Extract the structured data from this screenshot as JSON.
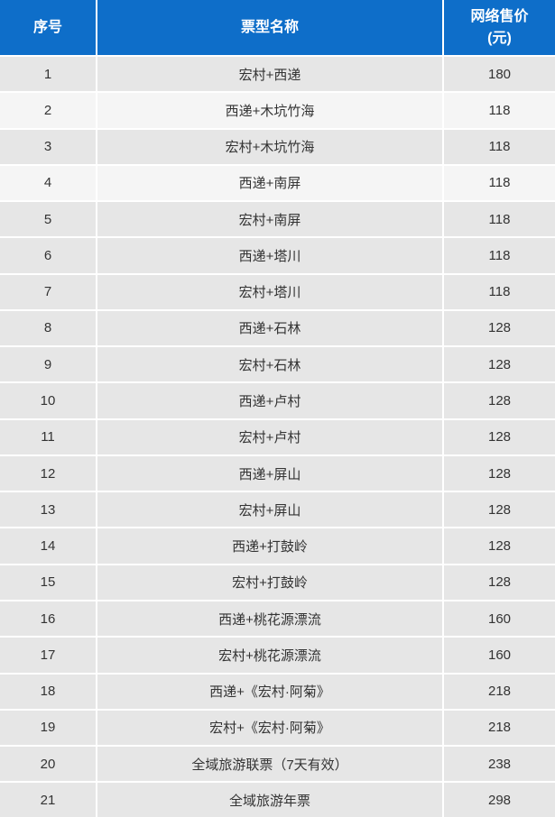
{
  "table": {
    "header": {
      "col_index": "序号",
      "col_name": "票型名称",
      "col_price_line1": "网络售价",
      "col_price_line2": "(元)"
    },
    "rows": [
      {
        "index": "1",
        "name": "宏村+西递",
        "price": "180"
      },
      {
        "index": "2",
        "name": "西递+木坑竹海",
        "price": "118"
      },
      {
        "index": "3",
        "name": "宏村+木坑竹海",
        "price": "118"
      },
      {
        "index": "4",
        "name": "西递+南屏",
        "price": "118"
      },
      {
        "index": "5",
        "name": "宏村+南屏",
        "price": "118"
      },
      {
        "index": "6",
        "name": "西递+塔川",
        "price": "118"
      },
      {
        "index": "7",
        "name": "宏村+塔川",
        "price": "118"
      },
      {
        "index": "8",
        "name": "西递+石林",
        "price": "128"
      },
      {
        "index": "9",
        "name": "宏村+石林",
        "price": "128"
      },
      {
        "index": "10",
        "name": "西递+卢村",
        "price": "128"
      },
      {
        "index": "11",
        "name": "宏村+卢村",
        "price": "128"
      },
      {
        "index": "12",
        "name": "西递+屏山",
        "price": "128"
      },
      {
        "index": "13",
        "name": "宏村+屏山",
        "price": "128"
      },
      {
        "index": "14",
        "name": "西递+打鼓岭",
        "price": "128"
      },
      {
        "index": "15",
        "name": "宏村+打鼓岭",
        "price": "128"
      },
      {
        "index": "16",
        "name": "西递+桃花源漂流",
        "price": "160"
      },
      {
        "index": "17",
        "name": "宏村+桃花源漂流",
        "price": "160"
      },
      {
        "index": "18",
        "name": "西递+《宏村·阿菊》",
        "price": "218"
      },
      {
        "index": "19",
        "name": "宏村+《宏村·阿菊》",
        "price": "218"
      },
      {
        "index": "20",
        "name": "全域旅游联票（7天有效）",
        "price": "238"
      },
      {
        "index": "21",
        "name": "全域旅游年票",
        "price": "298"
      }
    ],
    "light_rows": [
      2,
      4
    ],
    "colors": {
      "header_bg": "#0e6ec9",
      "header_text": "#ffffff",
      "row_bg_default": "#e6e6e6",
      "row_bg_light": "#f5f5f5",
      "separator": "#ffffff",
      "body_text": "#333333"
    }
  }
}
